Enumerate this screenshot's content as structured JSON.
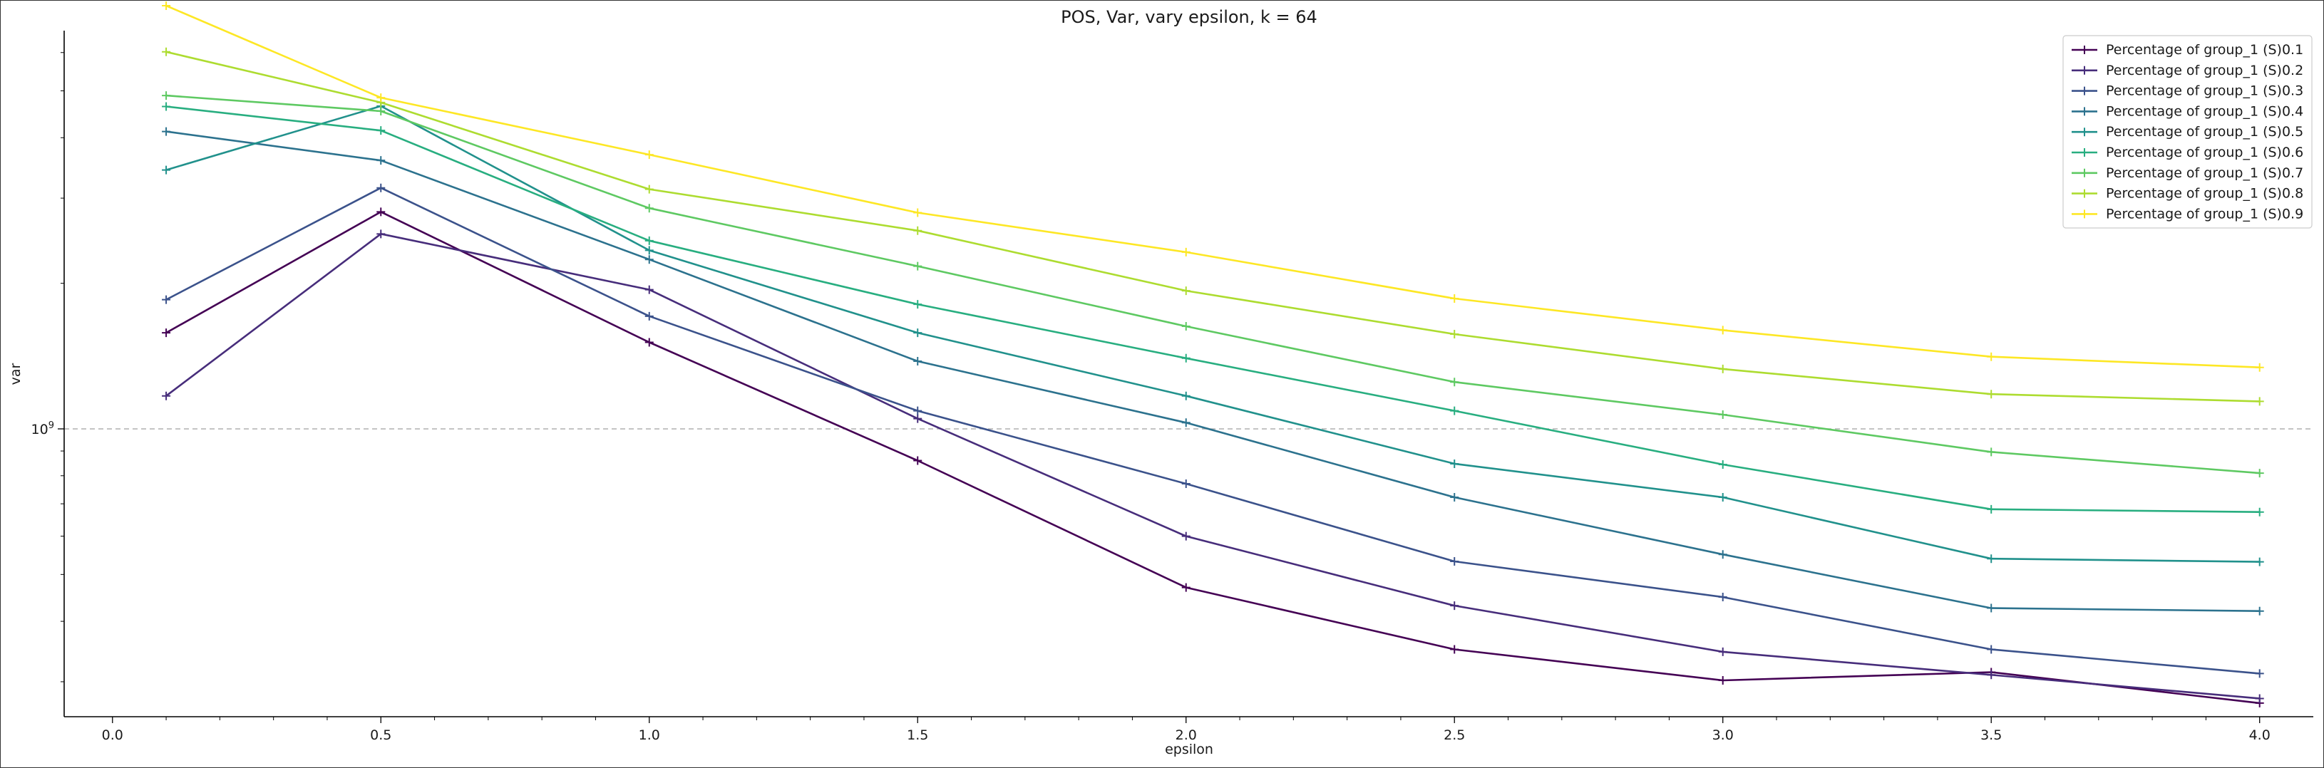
{
  "chart_data": {
    "type": "line",
    "title": "POS, Var, vary epsilon, k = 64",
    "xlabel": "epsilon",
    "ylabel": "var",
    "y_scale": "log",
    "x_ticks": [
      "0.0",
      "0.5",
      "1.0",
      "1.5",
      "2.0",
      "2.5",
      "3.0",
      "3.5",
      "4.0"
    ],
    "y_tick_label": "10^9",
    "y_tick_value": 1000000000,
    "xlim": [
      -0.09,
      4.1
    ],
    "ylim": [
      254000000,
      6660000000
    ],
    "reference_line": {
      "y": 1000000000,
      "style": "dashed",
      "color": "#b0b0b0"
    },
    "legend_position": "upper right",
    "x": [
      0.1,
      0.5,
      1.0,
      1.5,
      2.0,
      2.5,
      3.0,
      3.5,
      4.0
    ],
    "series": [
      {
        "name": "Percentage of group_1 (S)0.1",
        "color": "#440154",
        "values": [
          1580000000,
          2810000000,
          1510000000,
          860000000,
          470000000,
          350000000,
          302000000,
          314000000,
          271000000
        ]
      },
      {
        "name": "Percentage of group_1 (S)0.2",
        "color": "#472d7b",
        "values": [
          1170000000,
          2530000000,
          1940000000,
          1050000000,
          600000000,
          431000000,
          346000000,
          310000000,
          277000000
        ]
      },
      {
        "name": "Percentage of group_1 (S)0.3",
        "color": "#3b528b",
        "values": [
          1850000000,
          3150000000,
          1710000000,
          1090000000,
          770000000,
          532000000,
          449000000,
          350000000,
          312000000
        ]
      },
      {
        "name": "Percentage of group_1 (S)0.4",
        "color": "#2c728e",
        "values": [
          4120000000,
          3590000000,
          2240000000,
          1380000000,
          1030000000,
          722000000,
          550000000,
          426000000,
          420000000
        ]
      },
      {
        "name": "Percentage of group_1 (S)0.5",
        "color": "#21918c",
        "values": [
          3430000000,
          4650000000,
          2340000000,
          1580000000,
          1170000000,
          847000000,
          722000000,
          539000000,
          531000000
        ]
      },
      {
        "name": "Percentage of group_1 (S)0.6",
        "color": "#28ae80",
        "values": [
          4640000000,
          4140000000,
          2450000000,
          1810000000,
          1400000000,
          1090000000,
          844000000,
          682000000,
          673000000
        ]
      },
      {
        "name": "Percentage of group_1 (S)0.7",
        "color": "#5ec962",
        "values": [
          4890000000,
          4540000000,
          2860000000,
          2170000000,
          1630000000,
          1250000000,
          1070000000,
          896000000,
          810000000
        ]
      },
      {
        "name": "Percentage of group_1 (S)0.8",
        "color": "#addc30",
        "values": [
          6020000000,
          4730000000,
          3130000000,
          2570000000,
          1930000000,
          1570000000,
          1330000000,
          1180000000,
          1140000000
        ]
      },
      {
        "name": "Percentage of group_1 (S)0.9",
        "color": "#fde725",
        "values": [
          7500000000,
          4840000000,
          3690000000,
          2800000000,
          2320000000,
          1860000000,
          1600000000,
          1410000000,
          1340000000
        ]
      }
    ]
  }
}
